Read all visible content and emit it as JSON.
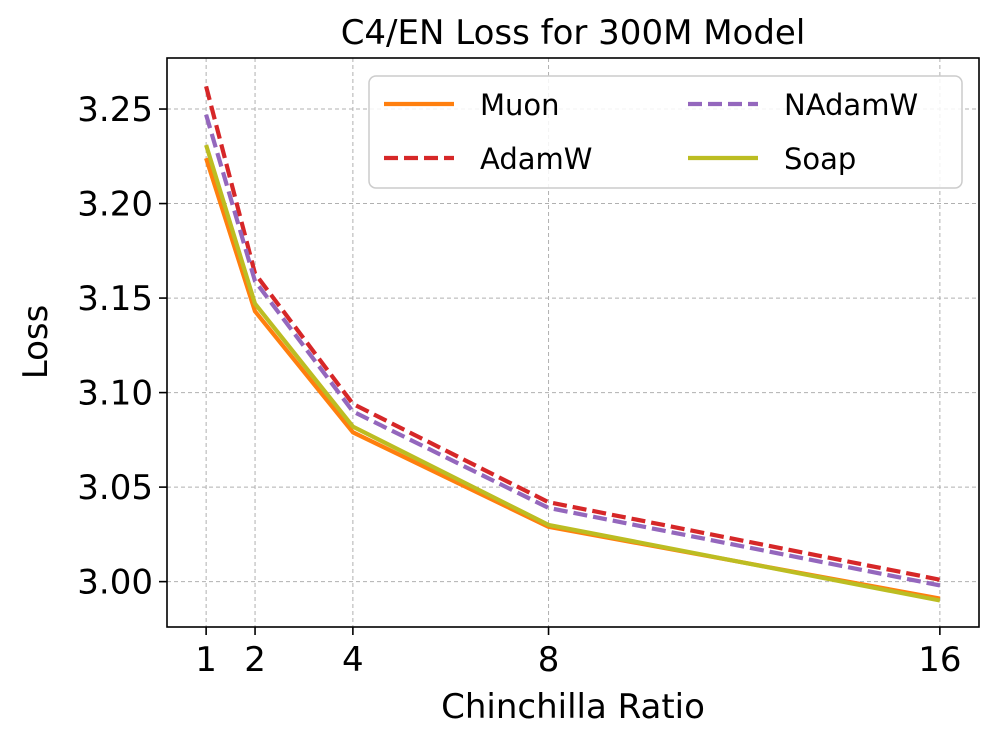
{
  "chart_data": {
    "type": "line",
    "title": "C4/EN Loss for 300M Model",
    "xlabel": "Chinchilla Ratio",
    "ylabel": "Loss",
    "x": [
      1,
      2,
      4,
      8,
      16
    ],
    "xticks": [
      1,
      2,
      4,
      8,
      16
    ],
    "xtick_labels": [
      "1",
      "2",
      "4",
      "8",
      "16"
    ],
    "xlim": [
      0.2,
      16.8
    ],
    "yticks": [
      3.0,
      3.05,
      3.1,
      3.15,
      3.2,
      3.25
    ],
    "ytick_labels": [
      "3.00",
      "3.05",
      "3.10",
      "3.15",
      "3.20",
      "3.25"
    ],
    "ylim": [
      2.976,
      3.277
    ],
    "grid": true,
    "legend_position": "top-right",
    "legend_columns": 2,
    "series": [
      {
        "name": "Muon",
        "values": [
          3.224,
          3.143,
          3.079,
          3.029,
          2.991
        ],
        "color": "#ff7f0e",
        "style": "solid"
      },
      {
        "name": "AdamW",
        "values": [
          3.262,
          3.163,
          3.094,
          3.042,
          3.001
        ],
        "color": "#d62728",
        "style": "dashed"
      },
      {
        "name": "NAdamW",
        "values": [
          3.247,
          3.159,
          3.09,
          3.039,
          2.998
        ],
        "color": "#9467bd",
        "style": "dashed"
      },
      {
        "name": "Soap",
        "values": [
          3.231,
          3.147,
          3.082,
          3.03,
          2.99
        ],
        "color": "#bcbd22",
        "style": "solid"
      }
    ]
  }
}
